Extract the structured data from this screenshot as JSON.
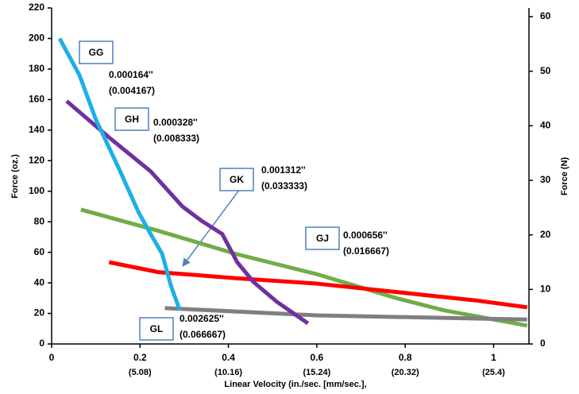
{
  "chart_data": {
    "type": "line",
    "x_label": "Linear Velocity (in./sec. [mm/sec.],",
    "y_label": "Force (oz.)",
    "y2_label": "Force (N)",
    "xlim": [
      0,
      1.08
    ],
    "xticks": [
      0,
      0.2,
      0.4,
      0.6,
      0.8,
      1
    ],
    "xtick_sublabels": [
      "(5.08)",
      "(10.16)",
      "(15.24)",
      "(20.32)",
      "(25.4)"
    ],
    "ylim": [
      0,
      220
    ],
    "yticks": [
      0,
      20,
      40,
      60,
      80,
      100,
      120,
      140,
      160,
      180,
      200,
      220
    ],
    "y2lim": [
      0,
      61.6
    ],
    "y2ticks": [
      0,
      10,
      20,
      30,
      40,
      50,
      60
    ],
    "series": [
      {
        "name": "GG",
        "color": "#1cb0e6",
        "annotation": [
          "0.000164''",
          "(0.004167)"
        ],
        "x": [
          0.018,
          0.063,
          0.1,
          0.152,
          0.197,
          0.224,
          0.25,
          0.27,
          0.29
        ],
        "values": [
          200,
          176,
          147,
          115,
          86,
          72,
          59,
          38,
          22
        ]
      },
      {
        "name": "GH",
        "color": "#7030a0",
        "annotation": [
          "0.000328''",
          "(0.008333)"
        ],
        "x": [
          0.034,
          0.135,
          0.224,
          0.296,
          0.34,
          0.386,
          0.42,
          0.457,
          0.51,
          0.58
        ],
        "values": [
          159,
          134,
          113,
          90,
          80.5,
          72,
          53.5,
          40.5,
          27.5,
          13.5
        ]
      },
      {
        "name": "GK",
        "color": "#ff0000",
        "annotation": [
          "0.001312''",
          "(0.033333)"
        ],
        "x": [
          0.13,
          0.242,
          0.42,
          0.6,
          0.78,
          0.96,
          1.076
        ],
        "values": [
          53.5,
          47,
          43,
          39.5,
          34,
          28.5,
          24
        ]
      },
      {
        "name": "GJ",
        "color": "#70ad47",
        "annotation": [
          "0.000656''",
          "(0.016667)"
        ],
        "x": [
          0.066,
          0.242,
          0.42,
          0.6,
          0.78,
          0.888,
          1.076
        ],
        "values": [
          88,
          74,
          58.7,
          45.7,
          30,
          22,
          12
        ]
      },
      {
        "name": "GL",
        "color": "#7f7f7f",
        "annotation": [
          "0.002625''",
          "(0.066667)"
        ],
        "x": [
          0.256,
          0.6,
          1.076
        ],
        "values": [
          23.5,
          18.7,
          16
        ]
      }
    ]
  }
}
